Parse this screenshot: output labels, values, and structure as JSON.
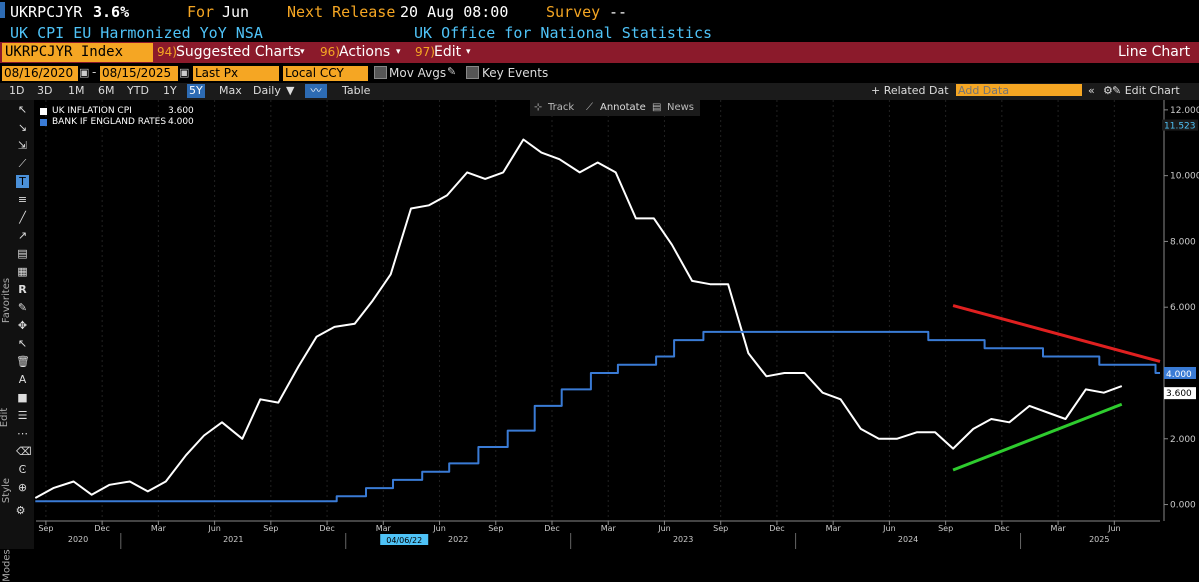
{
  "header": {
    "ticker": "UKRPCJYR",
    "value": "3.6%",
    "for_label": "For",
    "for_value": "Jun",
    "next_release_label": "Next Release",
    "next_release_value": "20 Aug 08:00",
    "survey_label": "Survey",
    "survey_value": "--",
    "description": "UK CPI EU Harmonized YoY NSA",
    "source": "UK Office for National Statistics"
  },
  "menubar": {
    "security": "UKRPCJYR Index",
    "suggested_num": "94)",
    "suggested": "Suggested Charts",
    "actions_num": "96)",
    "actions": "Actions",
    "edit_num": "97)",
    "edit": "Edit",
    "chart_type": "Line Chart"
  },
  "controls": {
    "start_date": "08/16/2020",
    "end_date": "08/15/2025",
    "price_field": "Last Px",
    "currency": "Local CCY",
    "mov_avgs": "Mov Avgs",
    "key_events": "Key Events",
    "periods": [
      "1D",
      "3D",
      "1M",
      "6M",
      "YTD",
      "1Y",
      "5Y",
      "Max"
    ],
    "selected_period": "5Y",
    "frequency": "Daily",
    "table": "Table",
    "related_data": "+ Related Dat",
    "add_data_placeholder": "Add Data",
    "edit_chart": "Edit Chart"
  },
  "chart_menu": {
    "track": "Track",
    "annotate": "Annotate",
    "news": "News"
  },
  "toolbar_labels": {
    "favorites": "Favorites",
    "edit": "Edit",
    "style": "Style",
    "modes": "Modes"
  },
  "colors": {
    "cpi": "#ffffff",
    "rates": "#3a7bd5",
    "red_trend": "#e02020",
    "green_trend": "#2ecc2e",
    "accent": "#f5a623",
    "bar": "#8b1a2b"
  },
  "chart_data": {
    "type": "line",
    "legend": [
      {
        "name": "UK INFLATION CPI",
        "value": "3.600"
      },
      {
        "name": "BANK IF ENGLAND RATES",
        "value": "4.000"
      }
    ],
    "ylim": [
      -0.5,
      12.3
    ],
    "yticks": [
      "0.000",
      "2.000",
      "4.000",
      "6.000",
      "8.000",
      "10.000",
      "12.000"
    ],
    "yticks_values": [
      0,
      2,
      4,
      6,
      8,
      10,
      12
    ],
    "top_value_label": "11.523",
    "last_labels": {
      "rates": "4.000",
      "cpi": "3.600"
    },
    "x_range": [
      2020.623,
      2025.62
    ],
    "month_ticks": [
      {
        "label": "Sep",
        "t": 2020.667
      },
      {
        "label": "Dec",
        "t": 2020.917
      },
      {
        "label": "Mar",
        "t": 2021.167
      },
      {
        "label": "Jun",
        "t": 2021.417
      },
      {
        "label": "Sep",
        "t": 2021.667
      },
      {
        "label": "Dec",
        "t": 2021.917
      },
      {
        "label": "Mar",
        "t": 2022.167
      },
      {
        "label": "Jun",
        "t": 2022.417
      },
      {
        "label": "Sep",
        "t": 2022.667
      },
      {
        "label": "Dec",
        "t": 2022.917
      },
      {
        "label": "Mar",
        "t": 2023.167
      },
      {
        "label": "Jun",
        "t": 2023.417
      },
      {
        "label": "Sep",
        "t": 2023.667
      },
      {
        "label": "Dec",
        "t": 2023.917
      },
      {
        "label": "Mar",
        "t": 2024.167
      },
      {
        "label": "Jun",
        "t": 2024.417
      },
      {
        "label": "Sep",
        "t": 2024.667
      },
      {
        "label": "Dec",
        "t": 2024.917
      },
      {
        "label": "Mar",
        "t": 2025.167
      },
      {
        "label": "Jun",
        "t": 2025.417
      }
    ],
    "year_labels": [
      {
        "label": "2020",
        "t": 2020.81
      },
      {
        "label": "2021",
        "t": 2021.5
      },
      {
        "label": "2022",
        "t": 2022.5
      },
      {
        "label": "2023",
        "t": 2023.5
      },
      {
        "label": "2024",
        "t": 2024.5
      },
      {
        "label": "2025",
        "t": 2025.35
      }
    ],
    "cursor_date": {
      "label": "04/06/22",
      "t": 2022.26
    },
    "series": [
      {
        "name": "UK INFLATION CPI",
        "step": false,
        "points": [
          [
            2020.62,
            0.2
          ],
          [
            2020.7,
            0.5
          ],
          [
            2020.79,
            0.7
          ],
          [
            2020.87,
            0.3
          ],
          [
            2020.95,
            0.6
          ],
          [
            2021.04,
            0.7
          ],
          [
            2021.12,
            0.4
          ],
          [
            2021.2,
            0.7
          ],
          [
            2021.29,
            1.5
          ],
          [
            2021.37,
            2.1
          ],
          [
            2021.45,
            2.5
          ],
          [
            2021.54,
            2.0
          ],
          [
            2021.62,
            3.2
          ],
          [
            2021.7,
            3.1
          ],
          [
            2021.79,
            4.2
          ],
          [
            2021.87,
            5.1
          ],
          [
            2021.95,
            5.4
          ],
          [
            2022.04,
            5.5
          ],
          [
            2022.12,
            6.2
          ],
          [
            2022.2,
            7.0
          ],
          [
            2022.29,
            9.0
          ],
          [
            2022.37,
            9.1
          ],
          [
            2022.45,
            9.4
          ],
          [
            2022.54,
            10.1
          ],
          [
            2022.62,
            9.9
          ],
          [
            2022.7,
            10.1
          ],
          [
            2022.79,
            11.1
          ],
          [
            2022.87,
            10.7
          ],
          [
            2022.95,
            10.5
          ],
          [
            2023.04,
            10.1
          ],
          [
            2023.12,
            10.4
          ],
          [
            2023.2,
            10.1
          ],
          [
            2023.29,
            8.7
          ],
          [
            2023.37,
            8.7
          ],
          [
            2023.45,
            7.9
          ],
          [
            2023.54,
            6.8
          ],
          [
            2023.62,
            6.7
          ],
          [
            2023.7,
            6.7
          ],
          [
            2023.79,
            4.6
          ],
          [
            2023.87,
            3.9
          ],
          [
            2023.95,
            4.0
          ],
          [
            2024.04,
            4.0
          ],
          [
            2024.12,
            3.4
          ],
          [
            2024.2,
            3.2
          ],
          [
            2024.29,
            2.3
          ],
          [
            2024.37,
            2.0
          ],
          [
            2024.45,
            2.0
          ],
          [
            2024.54,
            2.2
          ],
          [
            2024.62,
            2.2
          ],
          [
            2024.7,
            1.7
          ],
          [
            2024.79,
            2.3
          ],
          [
            2024.87,
            2.6
          ],
          [
            2024.95,
            2.5
          ],
          [
            2025.04,
            3.0
          ],
          [
            2025.12,
            2.8
          ],
          [
            2025.2,
            2.6
          ],
          [
            2025.29,
            3.5
          ],
          [
            2025.37,
            3.4
          ],
          [
            2025.45,
            3.6
          ]
        ]
      },
      {
        "name": "BANK IF ENGLAND RATES",
        "step": true,
        "points": [
          [
            2020.62,
            0.1
          ],
          [
            2021.96,
            0.25
          ],
          [
            2022.09,
            0.5
          ],
          [
            2022.21,
            0.75
          ],
          [
            2022.34,
            1.0
          ],
          [
            2022.46,
            1.25
          ],
          [
            2022.59,
            1.75
          ],
          [
            2022.72,
            2.25
          ],
          [
            2022.84,
            3.0
          ],
          [
            2022.96,
            3.5
          ],
          [
            2023.09,
            4.0
          ],
          [
            2023.21,
            4.25
          ],
          [
            2023.38,
            4.5
          ],
          [
            2023.46,
            5.0
          ],
          [
            2023.59,
            5.25
          ],
          [
            2024.59,
            5.0
          ],
          [
            2024.84,
            4.75
          ],
          [
            2025.1,
            4.5
          ],
          [
            2025.35,
            4.25
          ],
          [
            2025.6,
            4.0
          ],
          [
            2025.62,
            4.0
          ]
        ]
      }
    ],
    "trendlines": [
      {
        "name": "red-trendline",
        "from": [
          2024.7,
          6.05
        ],
        "to": [
          2025.62,
          4.35
        ]
      },
      {
        "name": "green-trendline",
        "from": [
          2024.7,
          1.05
        ],
        "to": [
          2025.45,
          3.05
        ]
      }
    ]
  }
}
